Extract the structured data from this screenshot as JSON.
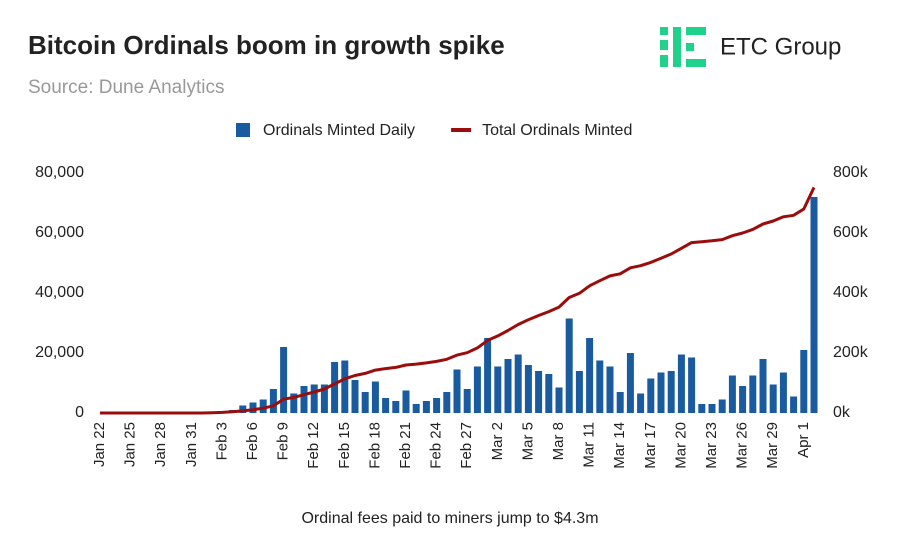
{
  "chart_data": {
    "type": "bar_line",
    "title": "Bitcoin Ordinals boom in growth spike",
    "subtitle": "Source: Dune Analytics",
    "brand": "ETC Group",
    "caption": "Ordinal fees paid to miners jump to $4.3m",
    "categories": [
      "Jan 22",
      null,
      null,
      "Jan 25",
      null,
      null,
      "Jan 28",
      null,
      null,
      "Jan 31",
      null,
      null,
      "Feb 3",
      null,
      null,
      "Feb 6",
      null,
      null,
      "Feb 9",
      null,
      null,
      "Feb 12",
      null,
      null,
      "Feb 15",
      null,
      null,
      "Feb 18",
      null,
      null,
      "Feb 21",
      null,
      null,
      "Feb 24",
      null,
      null,
      "Feb 27",
      null,
      null,
      "Mar 2",
      null,
      null,
      "Mar 5",
      null,
      null,
      "Mar 8",
      null,
      null,
      "Mar 11",
      null,
      null,
      "Mar 14",
      null,
      null,
      "Mar 17",
      null,
      null,
      "Mar 20",
      null,
      null,
      "Mar 23",
      null,
      null,
      "Mar 26",
      null,
      null,
      "Mar 29",
      null,
      null,
      "Apr 1",
      null
    ],
    "series": [
      {
        "name": "Ordinals Minted Daily",
        "type": "bar",
        "color": "#1a5a9e",
        "axis": "y",
        "values": [
          0,
          0,
          0,
          0,
          0,
          0,
          0,
          0,
          0,
          0,
          0,
          300,
          500,
          1000,
          2500,
          3500,
          4500,
          8000,
          22000,
          6500,
          9000,
          9500,
          9500,
          17000,
          17500,
          11000,
          7000,
          10500,
          5000,
          4000,
          7500,
          3000,
          4000,
          5000,
          7000,
          14500,
          8000,
          15500,
          25000,
          15500,
          18000,
          19500,
          16000,
          14000,
          13000,
          8500,
          31500,
          14000,
          25000,
          17500,
          15500,
          7000,
          20000,
          6500,
          11500,
          13500,
          14000,
          19500,
          18500,
          3000,
          3000,
          4500,
          12500,
          9000,
          12500,
          18000,
          9500,
          13500,
          5500,
          21000,
          72000
        ]
      },
      {
        "name": "Total Ordinals Minted",
        "type": "line",
        "color": "#9b0d0d",
        "axis": "y2",
        "values": [
          0,
          0,
          0,
          0,
          0,
          0,
          0,
          0,
          0,
          0,
          0,
          1000,
          2000,
          4000,
          7000,
          11000,
          16000,
          24000,
          46000,
          52000,
          61000,
          70000,
          80000,
          97000,
          114000,
          125000,
          132000,
          143000,
          148000,
          152000,
          160000,
          163000,
          167000,
          172000,
          179000,
          193000,
          201000,
          217000,
          242000,
          257000,
          275000,
          295000,
          311000,
          325000,
          338000,
          353000,
          385000,
          399000,
          424000,
          441000,
          457000,
          464000,
          484000,
          491000,
          502000,
          516000,
          530000,
          549000,
          568000,
          571000,
          574000,
          578000,
          591000,
          600000,
          612000,
          630000,
          640000,
          654000,
          659000,
          680000,
          752000
        ]
      }
    ],
    "ylim": [
      0,
      80000
    ],
    "yticks": [
      0,
      {
        "value": 20000,
        "label": "20,000"
      },
      {
        "value": 40000,
        "label": "40,000"
      },
      {
        "value": 60000,
        "label": "60,000"
      },
      {
        "value": 80000,
        "label": "80,000"
      }
    ],
    "y2lim": [
      0,
      800000
    ],
    "y2ticks": [
      {
        "value": 0,
        "label": "0k"
      },
      {
        "value": 200000,
        "label": "200k"
      },
      {
        "value": 400000,
        "label": "400k"
      },
      {
        "value": 600000,
        "label": "600k"
      },
      {
        "value": 800000,
        "label": "800k"
      }
    ],
    "grid": false,
    "legend": "top"
  }
}
